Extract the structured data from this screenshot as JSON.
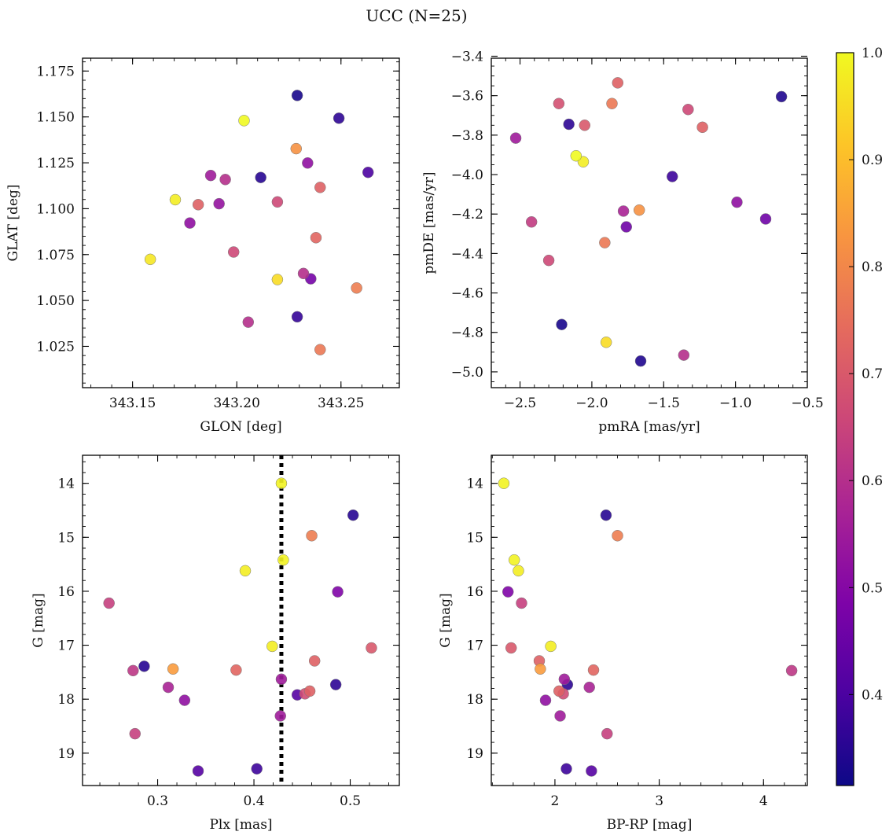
{
  "title": "UCC (N=25)",
  "colorbar": {
    "min": 0.315,
    "max": 1.0,
    "ticks": [
      0.4,
      0.5,
      0.6,
      0.7,
      0.8,
      0.9,
      1.0
    ],
    "tick_labels": [
      "0.4",
      "0.5",
      "0.6",
      "0.7",
      "0.8",
      "0.9",
      "1.0"
    ],
    "colormap": "plasma"
  },
  "chart_data": [
    {
      "id": "glon-glat",
      "type": "scatter",
      "xlabel": "GLON [deg]",
      "ylabel": "GLAT [deg]",
      "xlim": [
        343.126,
        343.278
      ],
      "ylim": [
        1.0025,
        1.182
      ],
      "y_inverted": false,
      "xticks": [
        343.15,
        343.2,
        343.25
      ],
      "xtick_labels": [
        "343.15",
        "343.20",
        "343.25"
      ],
      "xminor": 0.01,
      "yticks": [
        1.025,
        1.05,
        1.075,
        1.1,
        1.125,
        1.15,
        1.175
      ],
      "ytick_labels": [
        "1.025",
        "1.050",
        "1.075",
        "1.100",
        "1.125",
        "1.150",
        "1.175"
      ],
      "yminor": 0.005,
      "points": [
        {
          "x": 343.229,
          "y": 1.1617,
          "c": 0.33
        },
        {
          "x": 343.249,
          "y": 1.1493,
          "c": 0.36
        },
        {
          "x": 343.2035,
          "y": 1.148,
          "c": 1.0
        },
        {
          "x": 343.2285,
          "y": 1.1327,
          "c": 0.82
        },
        {
          "x": 343.234,
          "y": 1.1249,
          "c": 0.52
        },
        {
          "x": 343.263,
          "y": 1.1198,
          "c": 0.4
        },
        {
          "x": 343.1875,
          "y": 1.1181,
          "c": 0.55
        },
        {
          "x": 343.1945,
          "y": 1.1159,
          "c": 0.6
        },
        {
          "x": 343.2115,
          "y": 1.117,
          "c": 0.35
        },
        {
          "x": 343.24,
          "y": 1.1116,
          "c": 0.72
        },
        {
          "x": 343.1705,
          "y": 1.1049,
          "c": 0.98
        },
        {
          "x": 343.1815,
          "y": 1.1022,
          "c": 0.72
        },
        {
          "x": 343.1915,
          "y": 1.1027,
          "c": 0.53
        },
        {
          "x": 343.2195,
          "y": 1.1037,
          "c": 0.66
        },
        {
          "x": 343.1775,
          "y": 1.0922,
          "c": 0.52
        },
        {
          "x": 343.238,
          "y": 1.0842,
          "c": 0.73
        },
        {
          "x": 343.1585,
          "y": 1.0724,
          "c": 0.97
        },
        {
          "x": 343.1985,
          "y": 1.0764,
          "c": 0.66
        },
        {
          "x": 343.232,
          "y": 1.0647,
          "c": 0.6
        },
        {
          "x": 343.2355,
          "y": 1.0618,
          "c": 0.47
        },
        {
          "x": 343.2195,
          "y": 1.0614,
          "c": 0.95
        },
        {
          "x": 343.2575,
          "y": 1.0568,
          "c": 0.78
        },
        {
          "x": 343.2055,
          "y": 1.0382,
          "c": 0.6
        },
        {
          "x": 343.229,
          "y": 1.0411,
          "c": 0.37
        },
        {
          "x": 343.24,
          "y": 1.0232,
          "c": 0.77
        }
      ]
    },
    {
      "id": "pmra-pmde",
      "type": "scatter",
      "xlabel": "pmRA [mas/yr]",
      "ylabel": "pmDE [mas/yr]",
      "xlim": [
        -2.7,
        -0.5
      ],
      "ylim": [
        -5.08,
        -3.41
      ],
      "y_inverted": false,
      "xticks": [
        -2.5,
        -2.0,
        -1.5,
        -1.0,
        -0.5
      ],
      "xtick_labels": [
        "−2.5",
        "−2.0",
        "−1.5",
        "−1.0",
        "−0.5"
      ],
      "xminor": 0.1,
      "yticks": [
        -5.0,
        -4.8,
        -4.6,
        -4.4,
        -4.2,
        -4.0,
        -3.8,
        -3.6,
        -3.4
      ],
      "ytick_labels": [
        "−5.0",
        "−4.8",
        "−4.6",
        "−4.4",
        "−4.2",
        "−4.0",
        "−3.8",
        "−3.6",
        "−3.4"
      ],
      "yminor": 0.05,
      "points": [
        {
          "x": -1.82,
          "y": -3.535,
          "c": 0.72
        },
        {
          "x": -2.23,
          "y": -3.64,
          "c": 0.68
        },
        {
          "x": -1.86,
          "y": -3.64,
          "c": 0.77
        },
        {
          "x": -0.68,
          "y": -3.605,
          "c": 0.34
        },
        {
          "x": -1.33,
          "y": -3.67,
          "c": 0.66
        },
        {
          "x": -2.16,
          "y": -3.745,
          "c": 0.36
        },
        {
          "x": -2.05,
          "y": -3.75,
          "c": 0.7
        },
        {
          "x": -1.23,
          "y": -3.76,
          "c": 0.72
        },
        {
          "x": -2.53,
          "y": -3.815,
          "c": 0.55
        },
        {
          "x": -2.11,
          "y": -3.905,
          "c": 1.0
        },
        {
          "x": -2.06,
          "y": -3.935,
          "c": 0.98
        },
        {
          "x": -1.44,
          "y": -4.01,
          "c": 0.38
        },
        {
          "x": -0.99,
          "y": -4.14,
          "c": 0.52
        },
        {
          "x": -1.78,
          "y": -4.185,
          "c": 0.57
        },
        {
          "x": -1.67,
          "y": -4.18,
          "c": 0.82
        },
        {
          "x": -2.42,
          "y": -4.24,
          "c": 0.63
        },
        {
          "x": -0.79,
          "y": -4.225,
          "c": 0.46
        },
        {
          "x": -1.76,
          "y": -4.265,
          "c": 0.46
        },
        {
          "x": -1.91,
          "y": -4.345,
          "c": 0.77
        },
        {
          "x": -2.3,
          "y": -4.435,
          "c": 0.66
        },
        {
          "x": -2.21,
          "y": -4.76,
          "c": 0.33
        },
        {
          "x": -1.9,
          "y": -4.85,
          "c": 0.95
        },
        {
          "x": -1.36,
          "y": -4.915,
          "c": 0.6
        },
        {
          "x": -1.66,
          "y": -4.945,
          "c": 0.34
        }
      ]
    },
    {
      "id": "plx-g",
      "type": "scatter",
      "xlabel": "Plx [mas]",
      "ylabel": "G [mag]",
      "xlim": [
        0.222,
        0.551
      ],
      "ylim": [
        13.48,
        19.6
      ],
      "y_inverted": true,
      "xticks": [
        0.3,
        0.4,
        0.5
      ],
      "xtick_labels": [
        "0.3",
        "0.4",
        "0.5"
      ],
      "xminor": 0.02,
      "yticks": [
        14,
        15,
        16,
        17,
        18,
        19
      ],
      "ytick_labels": [
        "14",
        "15",
        "16",
        "17",
        "18",
        "19"
      ],
      "yminor": 0.2,
      "vline": {
        "x": 0.4285,
        "style": "dotted",
        "color": "#000000"
      },
      "points": [
        {
          "x": 0.4285,
          "y": 14.0,
          "c": 0.99
        },
        {
          "x": 0.503,
          "y": 14.59,
          "c": 0.35
        },
        {
          "x": 0.46,
          "y": 14.97,
          "c": 0.78
        },
        {
          "x": 0.4305,
          "y": 15.42,
          "c": 0.99
        },
        {
          "x": 0.391,
          "y": 15.62,
          "c": 0.98
        },
        {
          "x": 0.487,
          "y": 16.01,
          "c": 0.49
        },
        {
          "x": 0.2495,
          "y": 16.22,
          "c": 0.64
        },
        {
          "x": 0.419,
          "y": 17.02,
          "c": 0.98
        },
        {
          "x": 0.522,
          "y": 17.05,
          "c": 0.7
        },
        {
          "x": 0.463,
          "y": 17.29,
          "c": 0.72
        },
        {
          "x": 0.286,
          "y": 17.39,
          "c": 0.35
        },
        {
          "x": 0.2745,
          "y": 17.47,
          "c": 0.62
        },
        {
          "x": 0.316,
          "y": 17.44,
          "c": 0.84
        },
        {
          "x": 0.3815,
          "y": 17.46,
          "c": 0.73
        },
        {
          "x": 0.4285,
          "y": 17.63,
          "c": 0.55
        },
        {
          "x": 0.485,
          "y": 17.73,
          "c": 0.36
        },
        {
          "x": 0.311,
          "y": 17.78,
          "c": 0.57
        },
        {
          "x": 0.458,
          "y": 17.85,
          "c": 0.72
        },
        {
          "x": 0.453,
          "y": 17.9,
          "c": 0.67
        },
        {
          "x": 0.445,
          "y": 17.92,
          "c": 0.42
        },
        {
          "x": 0.328,
          "y": 18.02,
          "c": 0.52
        },
        {
          "x": 0.4275,
          "y": 18.31,
          "c": 0.55
        },
        {
          "x": 0.2765,
          "y": 18.64,
          "c": 0.64
        },
        {
          "x": 0.403,
          "y": 19.29,
          "c": 0.38
        },
        {
          "x": 0.342,
          "y": 19.33,
          "c": 0.42
        }
      ]
    },
    {
      "id": "bprp-g",
      "type": "scatter",
      "xlabel": "BP-RP [mag]",
      "ylabel": "G [mag]",
      "xlim": [
        1.39,
        4.42
      ],
      "ylim": [
        13.48,
        19.6
      ],
      "y_inverted": true,
      "xticks": [
        2,
        3,
        4
      ],
      "xtick_labels": [
        "2",
        "3",
        "4"
      ],
      "xminor": 0.2,
      "yticks": [
        14,
        15,
        16,
        17,
        18,
        19
      ],
      "ytick_labels": [
        "14",
        "15",
        "16",
        "17",
        "18",
        "19"
      ],
      "yminor": 0.2,
      "points": [
        {
          "x": 1.51,
          "y": 14.0,
          "c": 0.99
        },
        {
          "x": 2.49,
          "y": 14.59,
          "c": 0.35
        },
        {
          "x": 2.6,
          "y": 14.97,
          "c": 0.78
        },
        {
          "x": 1.61,
          "y": 15.42,
          "c": 0.99
        },
        {
          "x": 1.65,
          "y": 15.62,
          "c": 0.98
        },
        {
          "x": 1.55,
          "y": 16.01,
          "c": 0.49
        },
        {
          "x": 1.68,
          "y": 16.22,
          "c": 0.64
        },
        {
          "x": 1.96,
          "y": 17.02,
          "c": 0.98
        },
        {
          "x": 1.58,
          "y": 17.05,
          "c": 0.7
        },
        {
          "x": 1.85,
          "y": 17.29,
          "c": 0.72
        },
        {
          "x": 1.86,
          "y": 17.44,
          "c": 0.84
        },
        {
          "x": 2.37,
          "y": 17.46,
          "c": 0.73
        },
        {
          "x": 4.27,
          "y": 17.47,
          "c": 0.62
        },
        {
          "x": 2.09,
          "y": 17.63,
          "c": 0.55
        },
        {
          "x": 2.12,
          "y": 17.73,
          "c": 0.36
        },
        {
          "x": 2.33,
          "y": 17.78,
          "c": 0.57
        },
        {
          "x": 2.04,
          "y": 17.85,
          "c": 0.72
        },
        {
          "x": 2.08,
          "y": 17.9,
          "c": 0.67
        },
        {
          "x": 1.91,
          "y": 18.02,
          "c": 0.52
        },
        {
          "x": 2.05,
          "y": 18.31,
          "c": 0.55
        },
        {
          "x": 2.5,
          "y": 18.64,
          "c": 0.64
        },
        {
          "x": 2.11,
          "y": 19.29,
          "c": 0.38
        },
        {
          "x": 2.35,
          "y": 19.33,
          "c": 0.42
        }
      ]
    }
  ]
}
